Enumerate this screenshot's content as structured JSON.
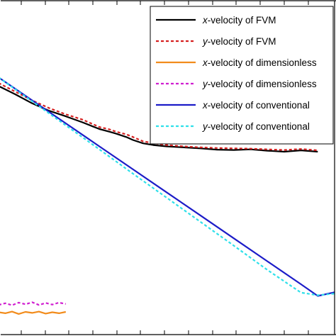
{
  "chart_data": {
    "type": "line",
    "title": "",
    "xlabel": "",
    "ylabel": "",
    "grid": false,
    "legend_placement": "top-right",
    "xlim": [
      0,
      100
    ],
    "ylim": [
      0,
      100
    ],
    "series": [
      {
        "name_prefix": "x",
        "name_suffix": "-velocity of FVM",
        "name": "x-velocity of FVM",
        "color": "#000000",
        "style": "solid",
        "x": [
          0,
          5,
          10,
          15,
          20,
          25,
          28,
          30,
          33,
          35,
          38,
          40,
          43,
          46,
          50,
          55,
          60,
          65,
          70,
          75,
          80,
          85,
          90,
          95
        ],
        "y": [
          74.6,
          72.1,
          69.4,
          67.2,
          65.5,
          63.7,
          62.5,
          61.7,
          60.9,
          60.3,
          59.3,
          58.4,
          57.4,
          56.9,
          56.5,
          56.2,
          55.9,
          55.5,
          55.4,
          55.6,
          55.2,
          54.9,
          55.3,
          54.9
        ]
      },
      {
        "name_prefix": "y",
        "name_suffix": "-velocity of FVM",
        "name": "y-velocity of FVM",
        "color": "#d62020",
        "style": "dotted",
        "x": [
          0,
          5,
          10,
          15,
          20,
          25,
          28,
          30,
          33,
          35,
          38,
          40,
          43,
          46,
          50,
          55,
          60,
          65,
          70,
          75,
          80,
          85,
          90,
          95
        ],
        "y": [
          75.5,
          72.9,
          70.3,
          68.0,
          66.1,
          64.5,
          63.2,
          62.3,
          61.6,
          60.9,
          60.1,
          59.3,
          58.0,
          57.5,
          56.9,
          56.5,
          56.2,
          56.0,
          55.9,
          55.8,
          55.6,
          55.4,
          55.7,
          55.3
        ]
      },
      {
        "name_prefix": "x",
        "name_suffix": "-velocity of dimensionless",
        "name": "x-velocity of dimensionless",
        "color": "#f28c1c",
        "style": "solid",
        "x": [
          0,
          2,
          4,
          6,
          8,
          10,
          12,
          14,
          16,
          18,
          20
        ],
        "y": [
          6.7,
          6.4,
          6.9,
          6.2,
          6.8,
          6.5,
          6.9,
          6.3,
          6.7,
          6.4,
          6.8
        ]
      },
      {
        "name_prefix": "y",
        "name_suffix": "-velocity of dimensionless",
        "name": "y-velocity of dimensionless",
        "color": "#d020d0",
        "style": "dotted",
        "x": [
          0,
          2,
          4,
          6,
          8,
          10,
          12,
          14,
          16,
          18,
          20
        ],
        "y": [
          8.9,
          9.4,
          8.8,
          9.6,
          9.1,
          9.7,
          8.9,
          9.5,
          9.0,
          9.6,
          9.2
        ]
      },
      {
        "name_prefix": "x",
        "name_suffix": "-velocity of conventional",
        "name": "x-velocity of conventional",
        "color": "#1c1cc8",
        "style": "solid",
        "x": [
          0,
          10,
          20,
          30,
          40,
          50,
          60,
          70,
          80,
          90,
          95,
          100
        ],
        "y": [
          77.2,
          70.3,
          63.4,
          56.5,
          49.6,
          42.7,
          35.8,
          28.9,
          22.0,
          15.1,
          11.6,
          12.7
        ]
      },
      {
        "name_prefix": "y",
        "name_suffix": "-velocity of conventional",
        "name": "y-velocity of conventional",
        "color": "#2fe0ea",
        "style": "dotted",
        "x": [
          0,
          10,
          20,
          30,
          40,
          50,
          60,
          70,
          80,
          90,
          95,
          100
        ],
        "y": [
          77.2,
          70.0,
          62.8,
          55.6,
          48.3,
          41.1,
          33.9,
          26.7,
          19.4,
          12.6,
          11.8,
          12.3
        ]
      }
    ]
  }
}
